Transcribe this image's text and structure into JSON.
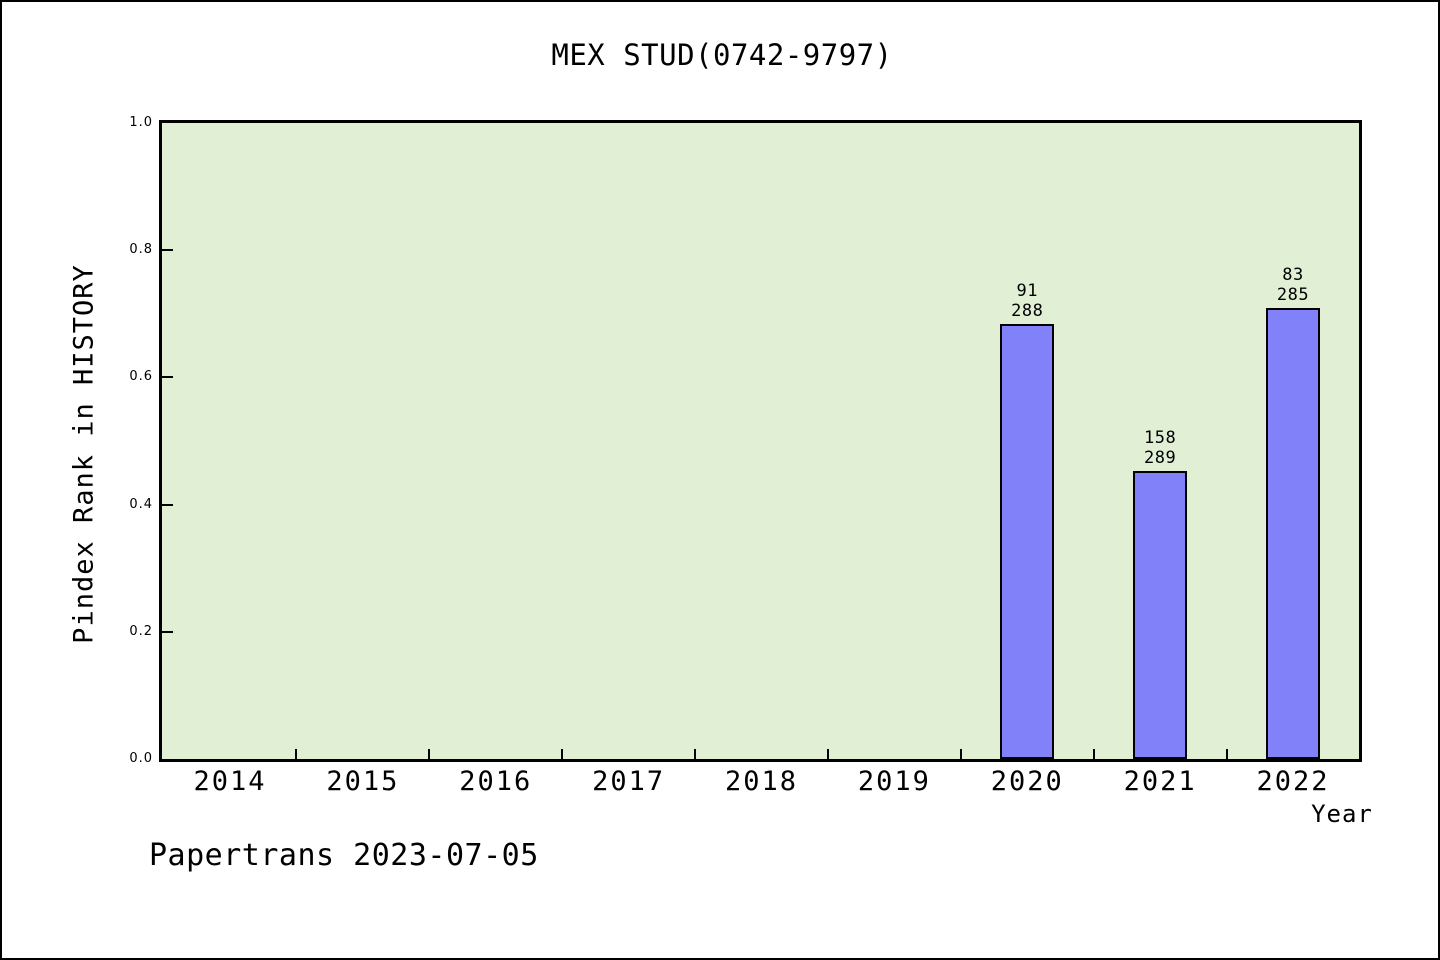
{
  "footer": "Papertrans 2023-07-05",
  "chart_data": {
    "type": "bar",
    "title": "MEX STUD(0742-9797)",
    "xlabel": "Year",
    "ylabel": "Pindex Rank in HISTORY",
    "categories": [
      "2014",
      "2015",
      "2016",
      "2017",
      "2018",
      "2019",
      "2020",
      "2021",
      "2022"
    ],
    "ytick_labels": [
      "0.0",
      "0.2",
      "0.4",
      "0.6",
      "0.8",
      "1.0"
    ],
    "ytick_values": [
      0.0,
      0.2,
      0.4,
      0.6,
      0.8,
      1.0
    ],
    "ylim": [
      0.0,
      1.0
    ],
    "grid": "off",
    "legend": "none",
    "bars": [
      {
        "category": "2020",
        "rank": 91,
        "total": 288,
        "value": 0.684,
        "label_top": "91",
        "label_bottom": "288"
      },
      {
        "category": "2021",
        "rank": 158,
        "total": 289,
        "value": 0.453,
        "label_top": "158",
        "label_bottom": "289"
      },
      {
        "category": "2022",
        "rank": 83,
        "total": 285,
        "value": 0.709,
        "label_top": "83",
        "label_bottom": "285"
      }
    ],
    "colors": {
      "bar_fill": "#8181fa",
      "bar_border": "#000000",
      "plot_background": "#e1efd5",
      "spine": "#000000",
      "text": "#000000",
      "figure_background": "#ffffff"
    }
  }
}
